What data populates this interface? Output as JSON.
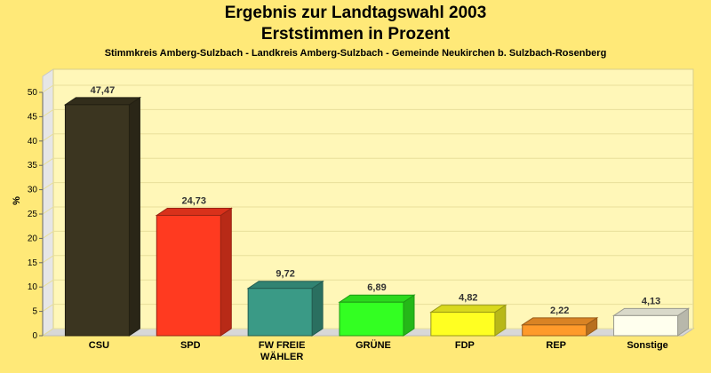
{
  "header": {
    "title_line1": "Ergebnis zur Landtagswahl 2003",
    "title_line2": "Erststimmen in Prozent",
    "subtitle": "Stimmkreis Amberg-Sulzbach - Landkreis Amberg-Sulzbach - Gemeinde Neukirchen b. Sulzbach-Rosenberg"
  },
  "chart_data": {
    "type": "bar",
    "title": "Ergebnis zur Landtagswahl 2003 Erststimmen in Prozent",
    "subtitle": "Stimmkreis Amberg-Sulzbach - Landkreis Amberg-Sulzbach - Gemeinde Neukirchen b. Sulzbach-Rosenberg",
    "ylabel": "%",
    "xlabel": "",
    "ylim": [
      0,
      50
    ],
    "yticks": [
      0,
      5,
      10,
      15,
      20,
      25,
      30,
      35,
      40,
      45,
      50
    ],
    "grid": true,
    "categories": [
      "CSU",
      "SPD",
      "FW FREIE WÄHLER",
      "GRÜNE",
      "FDP",
      "REP",
      "Sonstige"
    ],
    "category_lines": [
      [
        "CSU"
      ],
      [
        "SPD"
      ],
      [
        "FW FREIE",
        "WÄHLER"
      ],
      [
        "GRÜNE"
      ],
      [
        "FDP"
      ],
      [
        "REP"
      ],
      [
        "Sonstige"
      ]
    ],
    "values": [
      47.47,
      24.73,
      9.72,
      6.89,
      4.82,
      2.22,
      4.13
    ],
    "value_labels": [
      "47,47",
      "24,73",
      "9,72",
      "6,89",
      "4,82",
      "2,22",
      "4,13"
    ],
    "colors": [
      "#3b3520",
      "#ff3a20",
      "#3a9a86",
      "#33ff22",
      "#ffff22",
      "#ff9a2a",
      "#ffffee"
    ]
  }
}
